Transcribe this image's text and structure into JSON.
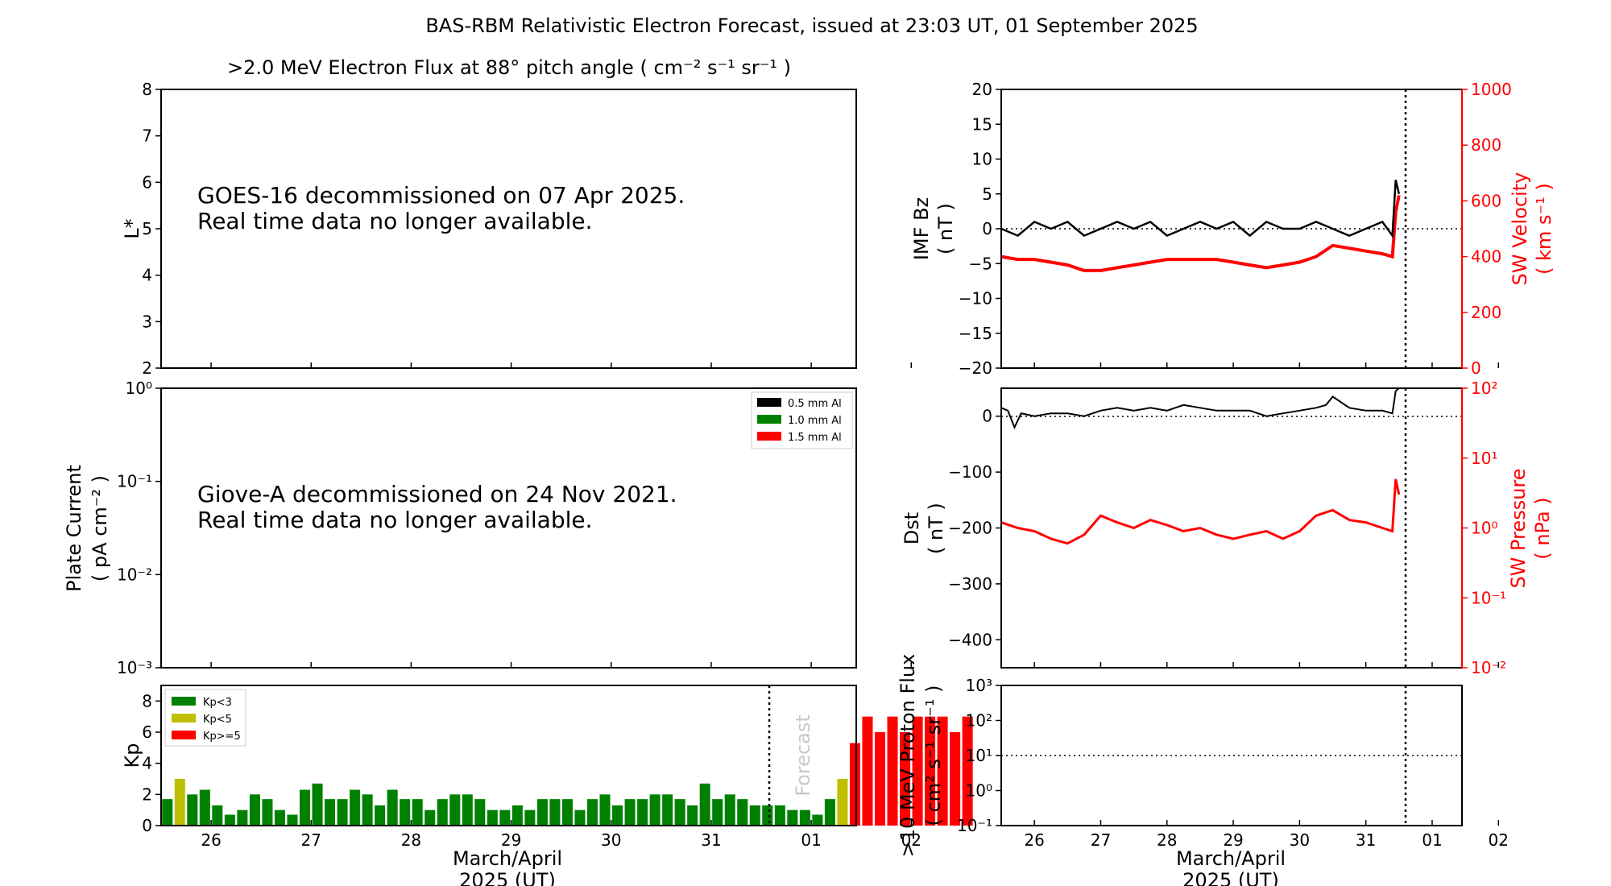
{
  "figure": {
    "title": "BAS-RBM Relativistic Electron Forecast, issued at 23:03 UT, 01 September 2025"
  },
  "electron_panel": {
    "title": ">2.0 MeV Electron Flux at 88° pitch angle ( cm⁻² s⁻¹ sr⁻¹ )",
    "ylabel": "L*",
    "message_line1": "GOES-16 decommissioned on 07 Apr 2025.",
    "message_line2": "Real time data no longer available."
  },
  "plate_panel": {
    "ylabel_line1": "Plate Current",
    "ylabel_line2": "( pA cm⁻² )",
    "message_line1": "Giove-A decommissioned on 24 Nov 2021.",
    "message_line2": "Real time data no longer available.",
    "legend": [
      {
        "label": "0.5 mm Al",
        "color": "#000000"
      },
      {
        "label": "1.0 mm Al",
        "color": "#008000"
      },
      {
        "label": "1.5 mm Al",
        "color": "#ff0000"
      }
    ]
  },
  "kp_panel": {
    "ylabel": "Kp",
    "xlabel_line1": "March/April",
    "xlabel_line2": "2025 (UT)",
    "forecast_label": "Forecast",
    "legend": [
      {
        "label": "Kp<3",
        "color": "#008000"
      },
      {
        "label": "Kp<5",
        "color": "#bfbf00"
      },
      {
        "label": "Kp>=5",
        "color": "#ff0000"
      }
    ]
  },
  "imf_panel": {
    "ylabel_line1": "IMF Bz",
    "ylabel_line2": "( nT )",
    "ylabel2_line1": "SW Velocity",
    "ylabel2_line2": "( km s⁻¹ )"
  },
  "dst_panel": {
    "ylabel_line1": "Dst",
    "ylabel_line2": "( nT )",
    "ylabel2_line1": "SW Pressure",
    "ylabel2_line2": "( nPa )"
  },
  "proton_panel": {
    "ylabel_line1": ">10 MeV Proton Flux",
    "ylabel_line2": "( cm² s⁻¹ sr⁻¹ )",
    "xlabel_line1": "March/April",
    "xlabel_line2": "2025 (UT)"
  },
  "chart_data": [
    {
      "type": "heatmap",
      "panel": "electron_flux",
      "ylabel": "L*",
      "ylim": [
        2,
        8
      ],
      "yticks": [
        "2",
        "3",
        "4",
        "5",
        "6",
        "7",
        "8"
      ],
      "note": "no data plotted"
    },
    {
      "type": "line",
      "panel": "plate_current",
      "yscale": "log",
      "ylim": [
        0.001,
        1
      ],
      "yticks": [
        "10⁻³",
        "10⁻²",
        "10⁻¹",
        "10⁰"
      ],
      "series": [
        {
          "name": "0.5 mm Al",
          "color": "#000000",
          "values": []
        },
        {
          "name": "1.0 mm Al",
          "color": "#008000",
          "values": []
        },
        {
          "name": "1.5 mm Al",
          "color": "#ff0000",
          "values": []
        }
      ]
    },
    {
      "type": "bar",
      "panel": "kp",
      "xlim": [
        25.5,
        32.45
      ],
      "xticks": [
        "26",
        "27",
        "28",
        "29",
        "30",
        "31",
        "01",
        "02"
      ],
      "ylim": [
        0,
        9
      ],
      "yticks": [
        "0",
        "2",
        "4",
        "6",
        "8"
      ],
      "bar_width_days": 0.125,
      "start_x": 25.5,
      "now_x": 31.5,
      "values": [
        1.7,
        3.0,
        2.0,
        2.3,
        1.3,
        0.7,
        1.0,
        2.0,
        1.7,
        1.0,
        0.7,
        2.3,
        2.7,
        1.7,
        1.7,
        2.3,
        2.0,
        1.3,
        2.3,
        1.7,
        1.7,
        1.0,
        1.7,
        2.0,
        2.0,
        1.7,
        1.0,
        1.0,
        1.3,
        1.0,
        1.7,
        1.7,
        1.7,
        1.0,
        1.7,
        2.0,
        1.3,
        1.7,
        1.7,
        2.0,
        2.0,
        1.7,
        1.3,
        2.7,
        1.7,
        2.0,
        1.7,
        1.3,
        1.3,
        1.3,
        1.0,
        1.0,
        0.7,
        1.7,
        3.0,
        5.3,
        7.0,
        6.0,
        7.0,
        6.0,
        7.0,
        7.0,
        7.0,
        6.0,
        7.0
      ],
      "forecast_from_index": 56
    },
    {
      "type": "line",
      "panel": "imf_bz_sw_velocity",
      "xlim": [
        25.5,
        32.45
      ],
      "ylim": [
        -20,
        20
      ],
      "yticks": [
        "−20",
        "−15",
        "−10",
        "−5",
        "0",
        "5",
        "10",
        "15",
        "20"
      ],
      "y2lim": [
        0,
        1000
      ],
      "y2ticks": [
        "0",
        "200",
        "400",
        "600",
        "800",
        "1000"
      ],
      "series": [
        {
          "name": "IMF Bz",
          "color": "#000000",
          "x": [
            25.5,
            25.75,
            26.0,
            26.25,
            26.5,
            26.75,
            27.0,
            27.25,
            27.5,
            27.75,
            28.0,
            28.25,
            28.5,
            28.75,
            29.0,
            29.25,
            29.5,
            29.75,
            30.0,
            30.25,
            30.5,
            30.75,
            31.0,
            31.25,
            31.4,
            31.45,
            31.5
          ],
          "values": [
            0,
            -1,
            1,
            0,
            1,
            -1,
            0,
            1,
            0,
            1,
            -1,
            0,
            1,
            0,
            1,
            -1,
            1,
            0,
            0,
            1,
            0,
            -1,
            0,
            1,
            -1,
            7,
            5
          ]
        },
        {
          "name": "SW Velocity",
          "color": "#ff0000",
          "x": [
            25.5,
            25.75,
            26.0,
            26.25,
            26.5,
            26.75,
            27.0,
            27.25,
            27.5,
            27.75,
            28.0,
            28.25,
            28.5,
            28.75,
            29.0,
            29.25,
            29.5,
            29.75,
            30.0,
            30.25,
            30.5,
            30.75,
            31.0,
            31.25,
            31.4,
            31.45,
            31.5
          ],
          "values": [
            400,
            390,
            390,
            380,
            370,
            350,
            350,
            360,
            370,
            380,
            390,
            390,
            390,
            390,
            380,
            370,
            360,
            370,
            380,
            400,
            440,
            430,
            420,
            410,
            400,
            560,
            620
          ]
        }
      ]
    },
    {
      "type": "line",
      "panel": "dst_sw_pressure",
      "xlim": [
        25.5,
        32.45
      ],
      "ylim": [
        -450,
        50
      ],
      "yticks": [
        "−400",
        "−300",
        "−200",
        "−100",
        "0"
      ],
      "y2scale": "log",
      "y2lim": [
        0.01,
        100
      ],
      "y2ticks": [
        "10⁻²",
        "10⁻¹",
        "10⁰",
        "10¹",
        "10²"
      ],
      "series": [
        {
          "name": "Dst",
          "color": "#000000",
          "x": [
            25.5,
            25.6,
            25.7,
            25.8,
            26.0,
            26.25,
            26.5,
            26.75,
            27.0,
            27.25,
            27.5,
            27.75,
            28.0,
            28.25,
            28.5,
            28.75,
            29.0,
            29.25,
            29.5,
            29.75,
            30.0,
            30.25,
            30.4,
            30.5,
            30.75,
            31.0,
            31.25,
            31.4,
            31.45,
            31.5
          ],
          "values": [
            15,
            10,
            -20,
            5,
            0,
            5,
            5,
            0,
            10,
            15,
            10,
            15,
            10,
            20,
            15,
            10,
            10,
            10,
            0,
            5,
            10,
            15,
            20,
            35,
            15,
            10,
            10,
            5,
            45,
            50
          ]
        },
        {
          "name": "SW Pressure",
          "color": "#ff0000",
          "x": [
            25.5,
            25.75,
            26.0,
            26.25,
            26.5,
            26.75,
            27.0,
            27.25,
            27.5,
            27.75,
            28.0,
            28.25,
            28.5,
            28.75,
            29.0,
            29.25,
            29.5,
            29.75,
            30.0,
            30.25,
            30.5,
            30.75,
            31.0,
            31.25,
            31.4,
            31.45,
            31.5
          ],
          "values": [
            1.2,
            1.0,
            0.9,
            0.7,
            0.6,
            0.8,
            1.5,
            1.2,
            1.0,
            1.3,
            1.1,
            0.9,
            1.0,
            0.8,
            0.7,
            0.8,
            0.9,
            0.7,
            0.9,
            1.5,
            1.8,
            1.3,
            1.2,
            1.0,
            0.9,
            5.0,
            3.0
          ]
        }
      ]
    },
    {
      "type": "line",
      "panel": "proton_flux",
      "xlim": [
        25.5,
        32.45
      ],
      "xticks": [
        "26",
        "27",
        "28",
        "29",
        "30",
        "31",
        "01",
        "02"
      ],
      "yscale": "log",
      "ylim": [
        0.1,
        1000
      ],
      "yticks": [
        "10⁻¹",
        "10⁰",
        "10¹",
        "10²",
        "10³"
      ],
      "threshold": 10,
      "now_x": 31.5,
      "series": []
    }
  ]
}
